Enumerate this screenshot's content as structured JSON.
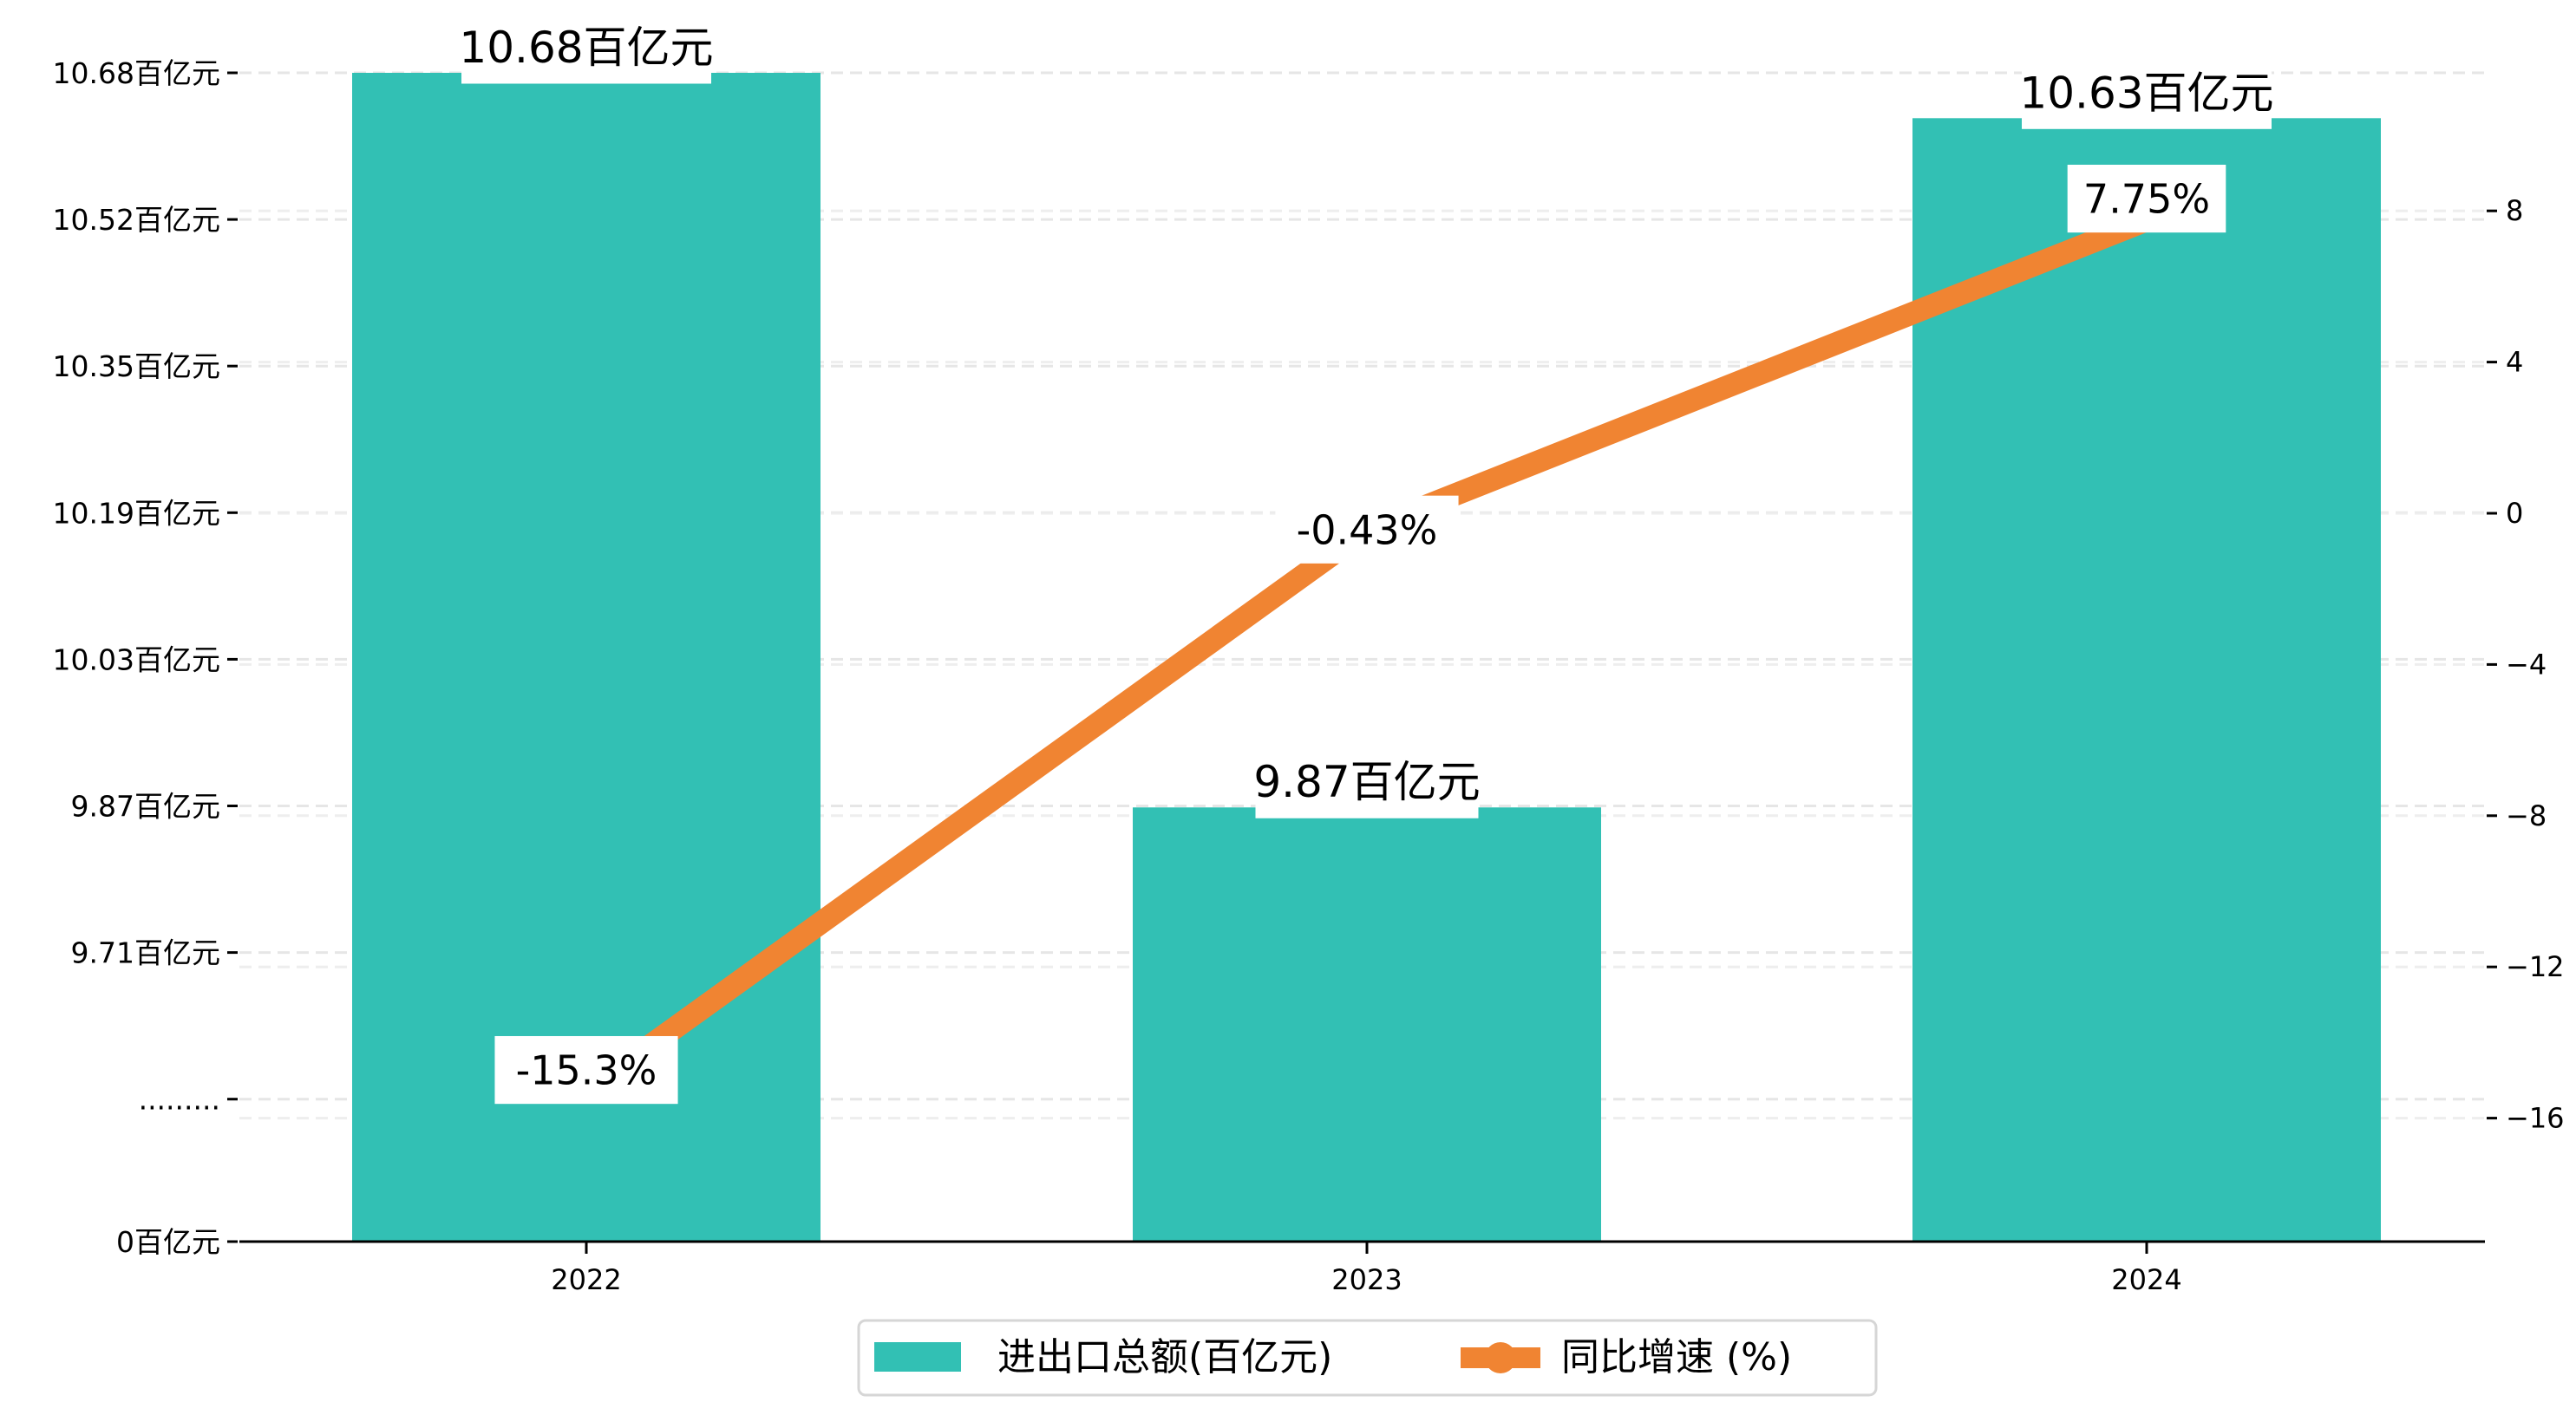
{
  "chart_data": {
    "type": "bar",
    "categories": [
      "2022",
      "2023",
      "2024"
    ],
    "series": [
      {
        "name": "进出口总额(百亿元)",
        "kind": "bar",
        "axis": "left",
        "values": [
          10.68,
          9.87,
          10.63
        ],
        "labels": [
          "10.68百亿元",
          "9.87百亿元",
          "10.63百亿元"
        ],
        "color": "#32C0B4"
      },
      {
        "name": "同比增速 (%)",
        "kind": "line",
        "axis": "right",
        "values": [
          -15.3,
          -0.43,
          7.75
        ],
        "labels": [
          "-15.3%",
          "-0.43%",
          "7.75%"
        ],
        "color": "#F08432"
      }
    ],
    "left_axis": {
      "ticks": [
        "10.68百亿元",
        "10.52百亿元",
        "10.35百亿元",
        "10.19百亿元",
        "10.03百亿元",
        "9.87百亿元",
        "9.71百亿元",
        ".........",
        "0百亿元"
      ],
      "tick_values": [
        10.68,
        10.52,
        10.35,
        10.19,
        10.03,
        9.87,
        9.71,
        null,
        0
      ],
      "broken": true
    },
    "right_axis": {
      "ticks": [
        "8",
        "4",
        "0",
        "−4",
        "−8",
        "−12",
        "−16"
      ],
      "tick_values": [
        8,
        4,
        0,
        -4,
        -8,
        -12,
        -16
      ],
      "ylim": [
        -19.1,
        10.9
      ]
    },
    "grid": true,
    "legend": {
      "placement": "bottom-center",
      "entries": [
        "进出口总额(百亿元)",
        "同比增速 (%)"
      ]
    }
  }
}
